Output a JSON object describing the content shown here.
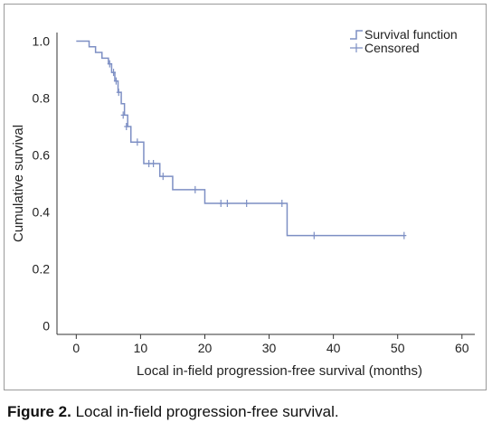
{
  "figure": {
    "caption_label": "Figure 2.",
    "caption_text": "Local in-field progression-free survival."
  },
  "chart_data": {
    "type": "line",
    "xlabel": "Local in-field progression-free survival (months)",
    "ylabel": "Cumulative survival",
    "xlim": [
      -3,
      62
    ],
    "ylim": [
      -0.03,
      1.03
    ],
    "x_ticks": [
      0,
      10,
      20,
      30,
      40,
      50,
      60
    ],
    "x_tick_labels": [
      "0",
      "10",
      "20",
      "30",
      "40",
      "50",
      "60"
    ],
    "y_ticks": [
      0,
      0.2,
      0.4,
      0.6,
      0.8,
      1.0
    ],
    "y_tick_labels": [
      "0",
      "0.2",
      "0.4",
      "0.6",
      "0.8",
      "1.0"
    ],
    "grid": false,
    "legend_position": "top-right",
    "line_color": "#7d8fc4",
    "series": [
      {
        "name": "Survival function",
        "kind": "step",
        "x": [
          0,
          2,
          3,
          4,
          5,
          5.5,
          6,
          6.5,
          7,
          7.5,
          8,
          8.5,
          10.5,
          13,
          15,
          20,
          32.8,
          51
        ],
        "y": [
          1.0,
          0.98,
          0.96,
          0.94,
          0.92,
          0.89,
          0.86,
          0.82,
          0.78,
          0.74,
          0.7,
          0.645,
          0.57,
          0.525,
          0.478,
          0.43,
          0.317,
          0.317
        ]
      },
      {
        "name": "Censored",
        "kind": "censor-marks",
        "x": [
          5.2,
          5.8,
          6.2,
          6.6,
          7.3,
          7.8,
          9.5,
          11.3,
          12,
          13.5,
          18.5,
          22.5,
          23.5,
          26.5,
          32,
          37,
          51
        ],
        "y": [
          0.92,
          0.89,
          0.86,
          0.82,
          0.74,
          0.7,
          0.645,
          0.57,
          0.57,
          0.525,
          0.478,
          0.43,
          0.43,
          0.43,
          0.43,
          0.317,
          0.317
        ]
      }
    ]
  }
}
